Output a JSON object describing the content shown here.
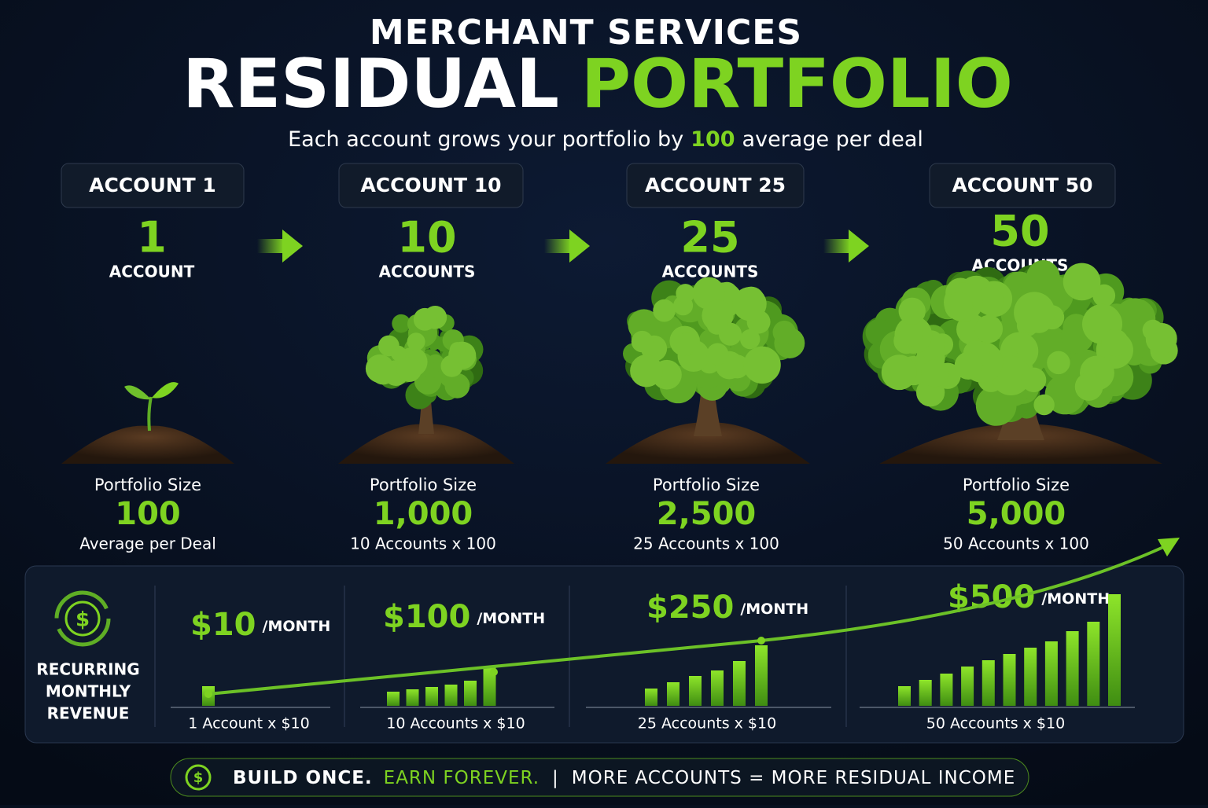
{
  "header": {
    "kicker": "MERCHANT SERVICES",
    "title_white": "RESIDUAL",
    "title_green": "PORTFOLIO",
    "subtitle_before": "Each account grows your portfolio by",
    "subtitle_highlight": "100",
    "subtitle_after": "average per deal"
  },
  "stages": [
    {
      "tab": "ACCOUNT 1",
      "count": "1",
      "count_label": "ACCOUNT",
      "size_label": "Portfolio Size",
      "size": "100",
      "size_note": "Average per Deal"
    },
    {
      "tab": "ACCOUNT 10",
      "count": "10",
      "count_label": "ACCOUNTS",
      "size_label": "Portfolio Size",
      "size": "1,000",
      "size_note": "10 Accounts x 100"
    },
    {
      "tab": "ACCOUNT 25",
      "count": "25",
      "count_label": "ACCOUNTS",
      "size_label": "Portfolio Size",
      "size": "2,500",
      "size_note": "25 Accounts x 100"
    },
    {
      "tab": "ACCOUNT 50",
      "count": "50",
      "count_label": "ACCOUNTS",
      "size_label": "Portfolio Size",
      "size": "5,000",
      "size_note": "50 Accounts x 100"
    }
  ],
  "revenue": {
    "label_lines": [
      "RECURRING",
      "MONTHLY",
      "REVENUE"
    ],
    "icon": "$",
    "panels": [
      {
        "amount": "$10",
        "unit": "/MONTH",
        "note": "1 Account x $10"
      },
      {
        "amount": "$100",
        "unit": "/MONTH",
        "note": "10 Accounts x $10"
      },
      {
        "amount": "$250",
        "unit": "/MONTH",
        "note": "25 Accounts x $10"
      },
      {
        "amount": "$500",
        "unit": "/MONTH",
        "note": "50 Accounts x $10"
      }
    ]
  },
  "footer": {
    "icon": "$",
    "part1": "BUILD ONCE.",
    "part2": "EARN FOREVER.",
    "separator": "|",
    "part3": "MORE ACCOUNTS = MORE RESIDUAL INCOME"
  }
}
